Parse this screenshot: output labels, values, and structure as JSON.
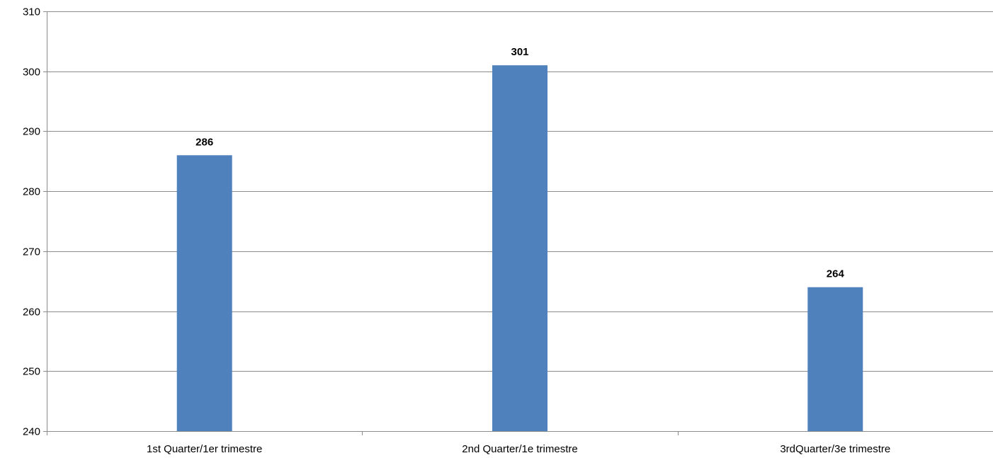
{
  "chart_data": {
    "type": "bar",
    "title": "",
    "xlabel": "",
    "ylabel": "",
    "categories": [
      "1st Quarter/1er trimestre",
      "2nd Quarter/1e trimestre",
      "3rdQuarter/3e trimestre"
    ],
    "values": [
      286,
      301,
      264
    ],
    "data_labels": [
      "286",
      "301",
      "264"
    ],
    "ylim": [
      240,
      310
    ],
    "yticks": [
      "240",
      "250",
      "260",
      "270",
      "280",
      "290",
      "300",
      "310"
    ],
    "grid": true,
    "legend": "none",
    "bar_color": "#4f81bd"
  }
}
